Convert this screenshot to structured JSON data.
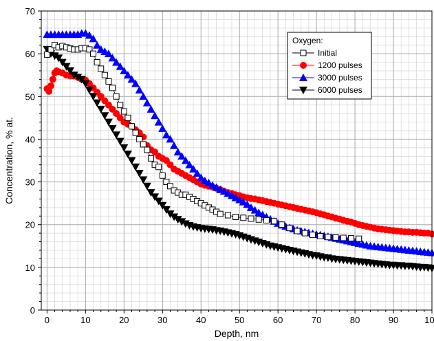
{
  "chart_data": {
    "type": "scatter",
    "title": "",
    "xlabel": "Depth, nm",
    "ylabel": "Concentration, % at.",
    "xlim": [
      -1.5,
      100
    ],
    "ylim": [
      0,
      70
    ],
    "xticks": [
      0,
      10,
      20,
      30,
      40,
      50,
      60,
      70,
      80,
      90,
      100
    ],
    "yticks": [
      0,
      10,
      20,
      30,
      40,
      50,
      60,
      70
    ],
    "grid": true,
    "minor_grid": true,
    "legend": {
      "title": "Oxygen:",
      "placement": "top-right"
    },
    "series": [
      {
        "name": "Initial",
        "marker": "open-square",
        "color": "#000000",
        "x": [
          0,
          1,
          2,
          3,
          4,
          5,
          6,
          7,
          8,
          9,
          10,
          11,
          12,
          13,
          14,
          15,
          16,
          17,
          18,
          19,
          20,
          21,
          22,
          23,
          24,
          25,
          26,
          27,
          28,
          29,
          30,
          31,
          32,
          33,
          34,
          35,
          36,
          37,
          38,
          39,
          40,
          41,
          42,
          43,
          44,
          45,
          47,
          49,
          51,
          53,
          55,
          57,
          59,
          61,
          63,
          65,
          67,
          69,
          71,
          73,
          75,
          77,
          79,
          81
        ],
        "y": [
          59.8,
          61.0,
          62.0,
          61.5,
          61.8,
          61.5,
          61.2,
          61.0,
          61.0,
          61.3,
          61.3,
          61.0,
          60.0,
          58.0,
          56.5,
          55.0,
          53.5,
          52.0,
          50.0,
          48.0,
          46.5,
          45.0,
          43.0,
          41.5,
          40.0,
          38.8,
          37.5,
          35.5,
          34.0,
          33.5,
          31.5,
          30.0,
          29.0,
          28.0,
          27.5,
          27.0,
          27.0,
          26.5,
          26.0,
          25.5,
          25.0,
          24.5,
          24.0,
          23.5,
          23.0,
          22.5,
          22.2,
          21.8,
          21.6,
          21.4,
          21.2,
          21.0,
          20.8,
          20.0,
          19.2,
          18.5,
          18.0,
          17.6,
          17.3,
          17.1,
          17.0,
          16.9,
          16.8,
          16.7
        ]
      },
      {
        "name": "1200 pulses",
        "marker": "filled-circle",
        "color": "#ff0000",
        "x": [
          0,
          0.5,
          1,
          1.5,
          2,
          2.5,
          3,
          4,
          5,
          6,
          7,
          8,
          9,
          10,
          11,
          12,
          13,
          14,
          15,
          16,
          17,
          18,
          19,
          20,
          21,
          22,
          23,
          24,
          25,
          26,
          27,
          28,
          29,
          30,
          31,
          32,
          33,
          34,
          35,
          36,
          37,
          38,
          39,
          40,
          41,
          42,
          43,
          44,
          45,
          46,
          47,
          48,
          49,
          50,
          51,
          52,
          53,
          54,
          55,
          56,
          57,
          58,
          59,
          60,
          61,
          62,
          63,
          64,
          65,
          66,
          67,
          68,
          69,
          70,
          71,
          72,
          73,
          74,
          75,
          76,
          77,
          78,
          79,
          80,
          81,
          82,
          83,
          84,
          85,
          86,
          87,
          88,
          89,
          90,
          91,
          92,
          93,
          94,
          95,
          96,
          97,
          98,
          99,
          100
        ],
        "y": [
          51.8,
          51.2,
          52.5,
          54.0,
          55.5,
          56.0,
          55.8,
          55.5,
          55.0,
          54.8,
          54.8,
          54.5,
          54.0,
          53.8,
          53.0,
          52.0,
          51.0,
          50.0,
          49.0,
          48.0,
          47.0,
          46.0,
          45.0,
          44.0,
          43.5,
          43.0,
          42.2,
          41.5,
          40.5,
          38.5,
          37.5,
          37.0,
          36.0,
          35.5,
          35.0,
          34.0,
          33.0,
          32.5,
          32.0,
          31.5,
          31.0,
          30.5,
          30.0,
          29.5,
          29.2,
          29.0,
          28.8,
          28.5,
          28.2,
          27.8,
          27.5,
          27.3,
          27.0,
          26.8,
          26.5,
          26.3,
          26.1,
          26.0,
          25.8,
          25.6,
          25.4,
          25.2,
          25.0,
          24.8,
          24.6,
          24.4,
          24.2,
          24.0,
          23.8,
          23.6,
          23.4,
          23.2,
          23.0,
          22.8,
          22.5,
          22.3,
          22.0,
          21.8,
          21.5,
          21.3,
          21.0,
          20.8,
          20.6,
          20.3,
          20.0,
          19.8,
          19.6,
          19.4,
          19.2,
          19.0,
          18.9,
          18.8,
          18.7,
          18.6,
          18.5,
          18.4,
          18.3,
          18.3,
          18.2,
          18.2,
          18.1,
          18.0,
          18.0,
          17.8
        ]
      },
      {
        "name": "3000 pulses",
        "marker": "filled-triangle-up",
        "color": "#0000ff",
        "x": [
          0,
          1,
          2,
          3,
          4,
          5,
          6,
          7,
          8,
          9,
          10,
          11,
          12,
          13,
          14,
          15,
          16,
          17,
          18,
          19,
          20,
          21,
          22,
          23,
          24,
          25,
          26,
          27,
          28,
          29,
          30,
          31,
          32,
          33,
          34,
          35,
          36,
          37,
          38,
          39,
          40,
          41,
          42,
          43,
          44,
          45,
          46,
          47,
          48,
          49,
          50,
          51,
          52,
          53,
          54,
          55,
          56,
          57,
          58,
          59,
          60,
          61,
          62,
          63,
          64,
          65,
          66,
          67,
          68,
          69,
          70,
          71,
          72,
          73,
          74,
          75,
          76,
          77,
          78,
          79,
          80,
          81,
          82,
          83,
          84,
          85,
          86,
          87,
          88,
          89,
          90,
          91,
          92,
          93,
          94,
          95,
          96,
          97,
          98,
          99,
          100
        ],
        "y": [
          64.5,
          64.5,
          64.5,
          64.5,
          64.5,
          64.5,
          64.5,
          64.5,
          64.5,
          64.8,
          64.8,
          64.3,
          63.5,
          62.0,
          61.0,
          60.5,
          60.0,
          59.0,
          58.0,
          57.0,
          56.0,
          55.0,
          54.0,
          53.0,
          51.5,
          50.0,
          48.5,
          47.0,
          45.5,
          44.0,
          42.5,
          41.0,
          40.0,
          38.5,
          37.0,
          36.0,
          35.0,
          34.0,
          33.0,
          32.0,
          31.0,
          30.3,
          29.8,
          29.2,
          28.7,
          28.2,
          27.8,
          27.3,
          26.8,
          26.3,
          25.8,
          25.3,
          24.7,
          24.0,
          23.4,
          22.8,
          22.3,
          21.8,
          21.3,
          20.8,
          20.3,
          19.9,
          19.6,
          19.3,
          19.0,
          18.7,
          18.5,
          18.3,
          18.1,
          17.9,
          17.7,
          17.6,
          17.4,
          17.2,
          17.0,
          16.8,
          16.6,
          16.4,
          16.2,
          16.0,
          15.8,
          15.6,
          15.4,
          15.2,
          15.0,
          14.9,
          14.8,
          14.7,
          14.6,
          14.5,
          14.4,
          14.3,
          14.2,
          14.1,
          14.0,
          13.9,
          13.8,
          13.7,
          13.6,
          13.5,
          13.4
        ]
      },
      {
        "name": "6000 pulses",
        "marker": "filled-triangle-down",
        "color": "#000000",
        "x": [
          0,
          1,
          2,
          3,
          4,
          5,
          6,
          7,
          8,
          9,
          10,
          11,
          12,
          13,
          14,
          15,
          16,
          17,
          18,
          19,
          20,
          21,
          22,
          23,
          24,
          25,
          26,
          27,
          28,
          29,
          30,
          31,
          32,
          33,
          34,
          35,
          36,
          37,
          38,
          39,
          40,
          41,
          42,
          43,
          44,
          45,
          46,
          47,
          48,
          49,
          50,
          51,
          52,
          53,
          54,
          55,
          56,
          57,
          58,
          59,
          60,
          61,
          62,
          63,
          64,
          65,
          66,
          67,
          68,
          69,
          70,
          71,
          72,
          73,
          74,
          75,
          76,
          77,
          78,
          79,
          80,
          81,
          82,
          83,
          84,
          85,
          86,
          87,
          88,
          89,
          90,
          91,
          92,
          93,
          94,
          95,
          96,
          97,
          98,
          99,
          100
        ],
        "y": [
          61.0,
          60.0,
          59.5,
          59.0,
          58.0,
          57.0,
          56.0,
          55.0,
          54.5,
          54.0,
          53.0,
          51.5,
          50.0,
          48.5,
          47.0,
          45.5,
          44.0,
          42.5,
          41.0,
          39.5,
          38.0,
          36.5,
          35.0,
          33.5,
          32.0,
          30.5,
          29.0,
          27.5,
          26.5,
          25.5,
          24.5,
          23.5,
          22.5,
          21.8,
          21.2,
          20.7,
          20.2,
          19.8,
          19.5,
          19.3,
          19.1,
          19.0,
          18.9,
          18.8,
          18.6,
          18.5,
          18.3,
          18.1,
          17.9,
          17.7,
          17.4,
          17.1,
          16.8,
          16.5,
          16.2,
          15.9,
          15.6,
          15.3,
          15.0,
          14.8,
          14.6,
          14.4,
          14.2,
          14.0,
          13.8,
          13.6,
          13.4,
          13.2,
          13.0,
          12.8,
          12.7,
          12.5,
          12.3,
          12.2,
          12.0,
          11.9,
          11.8,
          11.7,
          11.6,
          11.5,
          11.4,
          11.3,
          11.2,
          11.1,
          11.0,
          10.9,
          10.8,
          10.7,
          10.6,
          10.5,
          10.5,
          10.4,
          10.4,
          10.3,
          10.3,
          10.2,
          10.1,
          10.0,
          10.0,
          9.9,
          9.8
        ]
      }
    ]
  }
}
